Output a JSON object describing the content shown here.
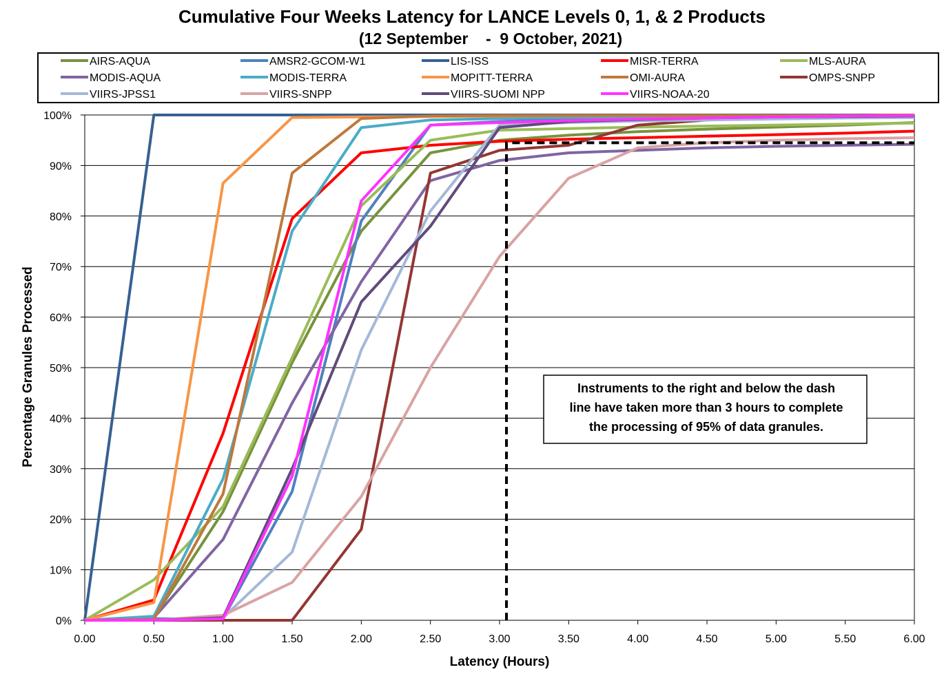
{
  "chart_data": {
    "type": "line",
    "title": "Cumulative Four Weeks Latency for LANCE Levels 0, 1, & 2 Products",
    "subtitle": "(12 September    -  9 October, 2021)",
    "xlabel": "Latency (Hours)",
    "ylabel": "Percentage Granules Processed",
    "x": [
      0,
      0.5,
      1,
      1.5,
      2,
      2.5,
      3,
      3.5,
      4,
      4.5,
      5,
      5.5,
      6
    ],
    "xlim": [
      0,
      6
    ],
    "ylim": [
      0,
      100
    ],
    "x_ticks": [
      "0.00",
      "0.50",
      "1.00",
      "1.50",
      "2.00",
      "2.50",
      "3.00",
      "3.50",
      "4.00",
      "4.50",
      "5.00",
      "5.50",
      "6.00"
    ],
    "y_ticks": [
      "0%",
      "10%",
      "20%",
      "30%",
      "40%",
      "50%",
      "60%",
      "70%",
      "80%",
      "90%",
      "100%"
    ],
    "grid": "horizontal",
    "legend": "top",
    "series": [
      {
        "name": "AIRS-AQUA",
        "color": "#77933C",
        "values": [
          0,
          0.5,
          21.5,
          51,
          77,
          92.5,
          95,
          96,
          96.7,
          97.2,
          97.6,
          98,
          98.5
        ]
      },
      {
        "name": "AMSR2-GCOM-W1",
        "color": "#4F81BD",
        "values": [
          0,
          0.3,
          0.3,
          25.5,
          79,
          98,
          98.7,
          99.2,
          99.5,
          99.6,
          99.7,
          99.8,
          99.9
        ]
      },
      {
        "name": "LIS-ISS",
        "color": "#376092",
        "values": [
          0,
          100,
          100,
          100,
          100,
          100,
          100,
          100,
          100,
          100,
          100,
          100,
          100
        ]
      },
      {
        "name": "MISR-TERRA",
        "color": "#FF0000",
        "values": [
          0,
          4,
          37,
          79.5,
          92.5,
          94,
          94.8,
          95.2,
          95.5,
          95.8,
          96.1,
          96.4,
          96.8
        ]
      },
      {
        "name": "MLS-AURA",
        "color": "#9BBB59",
        "values": [
          0,
          8,
          22.5,
          52,
          82,
          95,
          97,
          97.3,
          97.6,
          97.8,
          98,
          98.2,
          98.4
        ]
      },
      {
        "name": "MODIS-AQUA",
        "color": "#8064A2",
        "values": [
          0,
          0.5,
          16,
          43,
          67,
          87,
          91,
          92.5,
          93,
          93.5,
          93.8,
          94,
          94.2
        ]
      },
      {
        "name": "MODIS-TERRA",
        "color": "#4BACC6",
        "values": [
          0,
          0.8,
          28,
          77,
          97.5,
          99,
          99.3,
          99.5,
          99.6,
          99.7,
          99.8,
          99.9,
          99.9
        ]
      },
      {
        "name": "MOPITT-TERRA",
        "color": "#F79646",
        "values": [
          0,
          3.5,
          86.5,
          99.5,
          99.6,
          99.7,
          99.8,
          99.9,
          99.9,
          99.9,
          99.9,
          99.9,
          100
        ]
      },
      {
        "name": "OMI-AURA",
        "color": "#C0783C",
        "values": [
          0,
          0.2,
          25,
          88.5,
          99.3,
          99.8,
          99.9,
          99.9,
          99.9,
          99.9,
          99.9,
          99.9,
          100
        ]
      },
      {
        "name": "OMPS-SNPP",
        "color": "#943634",
        "values": [
          0,
          0,
          0,
          0,
          18,
          88.5,
          93,
          94,
          98,
          99,
          99.5,
          99.7,
          99.8
        ]
      },
      {
        "name": "VIIRS-JPSS1",
        "color": "#A5B8D8",
        "values": [
          0,
          0,
          0.5,
          13.5,
          53.5,
          81,
          98,
          98.5,
          98.8,
          99,
          99.2,
          99.4,
          99.5
        ]
      },
      {
        "name": "VIIRS-SNPP",
        "color": "#D9A3A3",
        "values": [
          0,
          0,
          1,
          7.5,
          24.5,
          50,
          72,
          87.5,
          93.5,
          94.5,
          95,
          95.3,
          95.5
        ]
      },
      {
        "name": "VIIRS-SUOMI NPP",
        "color": "#604A7B",
        "values": [
          0,
          0,
          0.5,
          30,
          63,
          78,
          97.5,
          98.7,
          99.1,
          99.4,
          99.6,
          99.7,
          99.8
        ]
      },
      {
        "name": "VIIRS-NOAA-20",
        "color": "#FF33FF",
        "values": [
          0,
          0,
          0.3,
          28.5,
          83,
          98,
          98.5,
          98.9,
          99.2,
          99.4,
          99.6,
          99.8,
          99.9
        ]
      }
    ],
    "threshold": {
      "x": 3.05,
      "y": 94.5,
      "style": "dashed",
      "color": "#000000"
    },
    "annotation": [
      "Instruments to the right and below the dash",
      "line have taken more than 3 hours to complete",
      "the processing of 95% of data granules."
    ]
  }
}
